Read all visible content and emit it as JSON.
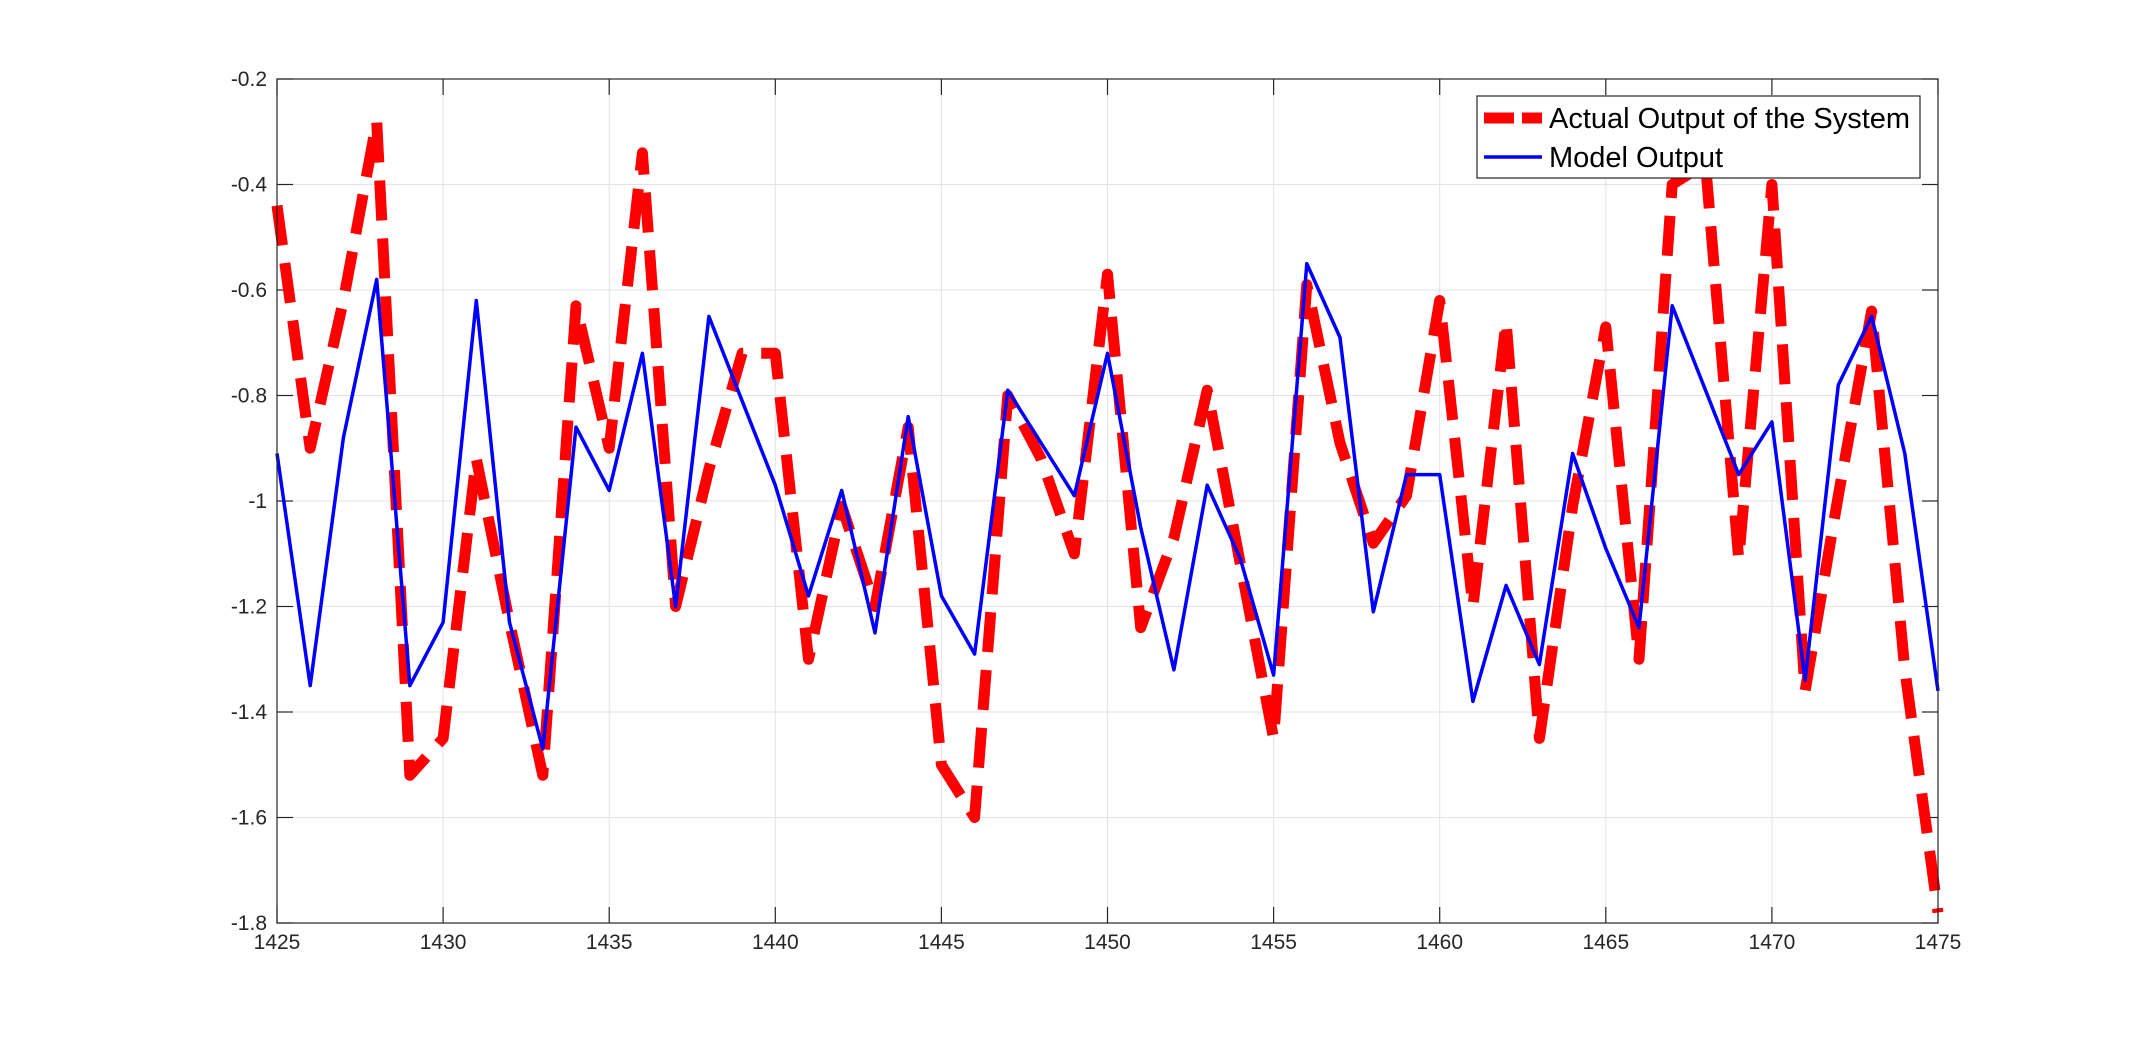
{
  "chart_data": {
    "type": "line",
    "title": "",
    "xlabel": "",
    "ylabel": "",
    "xlim": [
      1425,
      1475
    ],
    "ylim": [
      -1.8,
      -0.2
    ],
    "x_ticks": [
      1425,
      1430,
      1435,
      1440,
      1445,
      1450,
      1455,
      1460,
      1465,
      1470,
      1475
    ],
    "y_ticks": [
      -1.8,
      -1.6,
      -1.4,
      -1.2,
      -1,
      -0.8,
      -0.6,
      -0.4,
      -0.2
    ],
    "x_tick_labels": [
      "1425",
      "1430",
      "1435",
      "1440",
      "1445",
      "1450",
      "1455",
      "1460",
      "1465",
      "1470",
      "1475"
    ],
    "y_tick_labels": [
      "-1.8",
      "-1.6",
      "-1.4",
      "-1.2",
      "-1",
      "-0.8",
      "-0.6",
      "-0.4",
      "-0.2"
    ],
    "grid": true,
    "legend_position": "top-right",
    "x": [
      1425,
      1426,
      1427,
      1428,
      1429,
      1430,
      1431,
      1432,
      1433,
      1434,
      1435,
      1436,
      1437,
      1438,
      1439,
      1440,
      1441,
      1442,
      1443,
      1444,
      1445,
      1446,
      1447,
      1448,
      1449,
      1450,
      1451,
      1452,
      1453,
      1454,
      1455,
      1456,
      1457,
      1458,
      1459,
      1460,
      1461,
      1462,
      1463,
      1464,
      1465,
      1466,
      1467,
      1468,
      1469,
      1470,
      1471,
      1472,
      1473,
      1474,
      1475
    ],
    "series": [
      {
        "name": "Actual Output of the System",
        "color": "#ff0000",
        "style": "dashed",
        "values": [
          -0.44,
          -0.9,
          -0.62,
          -0.28,
          -1.52,
          -1.45,
          -0.92,
          -1.23,
          -1.52,
          -0.63,
          -0.9,
          -0.34,
          -1.2,
          -0.94,
          -0.72,
          -0.72,
          -1.3,
          -1.01,
          -1.2,
          -0.86,
          -1.5,
          -1.6,
          -0.8,
          -0.92,
          -1.1,
          -0.57,
          -1.24,
          -1.07,
          -0.79,
          -1.12,
          -1.45,
          -0.59,
          -0.89,
          -1.08,
          -0.99,
          -0.62,
          -1.2,
          -0.66,
          -1.45,
          -1.01,
          -0.67,
          -1.3,
          -0.4,
          -0.36,
          -1.11,
          -0.4,
          -1.36,
          -0.99,
          -0.64,
          -1.32,
          -1.78
        ]
      },
      {
        "name": "Model Output",
        "color": "#0000ff",
        "style": "solid",
        "values": [
          -0.91,
          -1.35,
          -0.88,
          -0.58,
          -1.35,
          -1.23,
          -0.62,
          -1.23,
          -1.47,
          -0.86,
          -0.98,
          -0.72,
          -1.2,
          -0.65,
          -0.81,
          -0.97,
          -1.18,
          -0.98,
          -1.25,
          -0.84,
          -1.18,
          -1.29,
          -0.79,
          -0.89,
          -0.99,
          -0.72,
          -1.05,
          -1.32,
          -0.97,
          -1.11,
          -1.33,
          -0.55,
          -0.69,
          -1.21,
          -0.95,
          -0.95,
          -1.38,
          -1.16,
          -1.31,
          -0.91,
          -1.09,
          -1.24,
          -0.63,
          -0.79,
          -0.95,
          -0.85,
          -1.34,
          -0.78,
          -0.65,
          -0.91,
          -1.36
        ]
      }
    ]
  }
}
